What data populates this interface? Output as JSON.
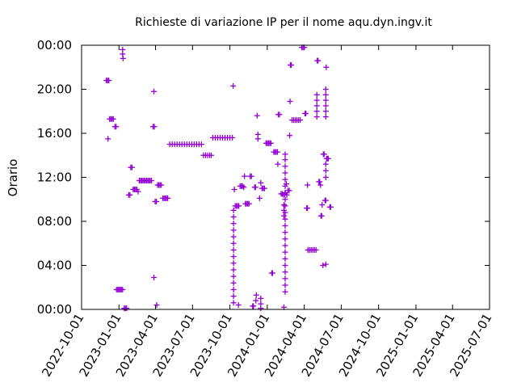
{
  "chart_data": {
    "type": "scatter",
    "title": "Richieste di variazione IP per il nome aqu.dyn.ingv.it",
    "ylabel": "Orario",
    "xlabel": "",
    "x_ticks": [
      "2022-10-01",
      "2023-01-01",
      "2023-04-01",
      "2023-07-01",
      "2023-10-01",
      "2024-01-01",
      "2024-04-01",
      "2024-07-01",
      "2024-10-01",
      "2025-01-01",
      "2025-04-01",
      "2025-07-01"
    ],
    "y_ticks": [
      "00:00",
      "04:00",
      "08:00",
      "12:00",
      "16:00",
      "20:00",
      "00:00"
    ],
    "xlim": [
      "2022-10-01",
      "2025-07-01"
    ],
    "ylim_hours": [
      0,
      24
    ],
    "grid": false,
    "marker": "plus",
    "series_color": "#9400d3",
    "points": [
      {
        "date": "2022-12-01",
        "hour": 20.8
      },
      {
        "date": "2022-12-04",
        "hour": 20.8
      },
      {
        "date": "2022-12-07",
        "hour": 20.8
      },
      {
        "date": "2022-12-05",
        "hour": 15.5
      },
      {
        "date": "2022-12-09",
        "hour": 17.3
      },
      {
        "date": "2022-12-12",
        "hour": 17.3
      },
      {
        "date": "2022-12-15",
        "hour": 17.3
      },
      {
        "date": "2022-12-18",
        "hour": 17.3
      },
      {
        "date": "2022-12-22",
        "hour": 16.6
      },
      {
        "date": "2022-12-25",
        "hour": 16.6
      },
      {
        "date": "2022-12-26",
        "hour": 1.8
      },
      {
        "date": "2022-12-29",
        "hour": 1.8
      },
      {
        "date": "2023-01-01",
        "hour": 1.8
      },
      {
        "date": "2023-01-04",
        "hour": 1.8
      },
      {
        "date": "2023-01-07",
        "hour": 1.8
      },
      {
        "date": "2023-01-10",
        "hour": 1.8
      },
      {
        "date": "2023-01-10",
        "hour": 23.6
      },
      {
        "date": "2023-01-10",
        "hour": 23.2
      },
      {
        "date": "2023-01-11",
        "hour": 22.8
      },
      {
        "date": "2023-01-14",
        "hour": 0.1
      },
      {
        "date": "2023-01-17",
        "hour": 0.1
      },
      {
        "date": "2023-01-20",
        "hour": 0.1
      },
      {
        "date": "2023-01-25",
        "hour": 10.4
      },
      {
        "date": "2023-01-28",
        "hour": 10.4
      },
      {
        "date": "2023-01-30",
        "hour": 12.9
      },
      {
        "date": "2023-02-02",
        "hour": 12.9
      },
      {
        "date": "2023-02-05",
        "hour": 10.9
      },
      {
        "date": "2023-02-08",
        "hour": 10.9
      },
      {
        "date": "2023-02-11",
        "hour": 10.9
      },
      {
        "date": "2023-02-14",
        "hour": 10.9
      },
      {
        "date": "2023-02-17",
        "hour": 10.7
      },
      {
        "date": "2023-02-20",
        "hour": 11.7
      },
      {
        "date": "2023-02-23",
        "hour": 11.7
      },
      {
        "date": "2023-02-26",
        "hour": 11.7
      },
      {
        "date": "2023-03-01",
        "hour": 11.7
      },
      {
        "date": "2023-03-04",
        "hour": 11.7
      },
      {
        "date": "2023-03-07",
        "hour": 11.7
      },
      {
        "date": "2023-03-10",
        "hour": 11.7
      },
      {
        "date": "2023-03-13",
        "hour": 11.7
      },
      {
        "date": "2023-03-16",
        "hour": 11.7
      },
      {
        "date": "2023-03-19",
        "hour": 11.7
      },
      {
        "date": "2023-03-22",
        "hour": 11.7
      },
      {
        "date": "2023-03-26",
        "hour": 16.6
      },
      {
        "date": "2023-03-29",
        "hour": 16.6
      },
      {
        "date": "2023-03-28",
        "hour": 19.8
      },
      {
        "date": "2023-03-28",
        "hour": 2.9
      },
      {
        "date": "2023-03-31",
        "hour": 9.8
      },
      {
        "date": "2023-04-03",
        "hour": 9.8
      },
      {
        "date": "2023-04-04",
        "hour": 0.4
      },
      {
        "date": "2023-04-06",
        "hour": 11.3
      },
      {
        "date": "2023-04-09",
        "hour": 11.3
      },
      {
        "date": "2023-04-12",
        "hour": 11.3
      },
      {
        "date": "2023-04-15",
        "hour": 11.3
      },
      {
        "date": "2023-04-19",
        "hour": 10.1
      },
      {
        "date": "2023-04-22",
        "hour": 10.1
      },
      {
        "date": "2023-04-25",
        "hour": 10.1
      },
      {
        "date": "2023-04-28",
        "hour": 10.1
      },
      {
        "date": "2023-05-01",
        "hour": 10.1
      },
      {
        "date": "2023-05-06",
        "hour": 15.0
      },
      {
        "date": "2023-05-12",
        "hour": 15.0
      },
      {
        "date": "2023-05-18",
        "hour": 15.0
      },
      {
        "date": "2023-05-24",
        "hour": 15.0
      },
      {
        "date": "2023-05-30",
        "hour": 15.0
      },
      {
        "date": "2023-06-05",
        "hour": 15.0
      },
      {
        "date": "2023-06-11",
        "hour": 15.0
      },
      {
        "date": "2023-06-17",
        "hour": 15.0
      },
      {
        "date": "2023-06-23",
        "hour": 15.0
      },
      {
        "date": "2023-06-29",
        "hour": 15.0
      },
      {
        "date": "2023-07-05",
        "hour": 15.0
      },
      {
        "date": "2023-07-11",
        "hour": 15.0
      },
      {
        "date": "2023-07-17",
        "hour": 15.0
      },
      {
        "date": "2023-07-23",
        "hour": 15.0
      },
      {
        "date": "2023-07-28",
        "hour": 14.0
      },
      {
        "date": "2023-08-02",
        "hour": 14.0
      },
      {
        "date": "2023-08-07",
        "hour": 14.0
      },
      {
        "date": "2023-08-12",
        "hour": 14.0
      },
      {
        "date": "2023-08-16",
        "hour": 14.0
      },
      {
        "date": "2023-08-20",
        "hour": 15.6
      },
      {
        "date": "2023-08-26",
        "hour": 15.6
      },
      {
        "date": "2023-09-01",
        "hour": 15.6
      },
      {
        "date": "2023-09-07",
        "hour": 15.6
      },
      {
        "date": "2023-09-13",
        "hour": 15.6
      },
      {
        "date": "2023-09-19",
        "hour": 15.6
      },
      {
        "date": "2023-09-25",
        "hour": 15.6
      },
      {
        "date": "2023-10-01",
        "hour": 15.6
      },
      {
        "date": "2023-10-07",
        "hour": 15.6
      },
      {
        "date": "2023-10-09",
        "hour": 20.3
      },
      {
        "date": "2023-10-10",
        "hour": 0.6
      },
      {
        "date": "2023-10-10",
        "hour": 1.2
      },
      {
        "date": "2023-10-10",
        "hour": 1.8
      },
      {
        "date": "2023-10-10",
        "hour": 2.4
      },
      {
        "date": "2023-10-10",
        "hour": 3.0
      },
      {
        "date": "2023-10-10",
        "hour": 3.6
      },
      {
        "date": "2023-10-10",
        "hour": 4.2
      },
      {
        "date": "2023-10-10",
        "hour": 4.8
      },
      {
        "date": "2023-10-10",
        "hour": 5.4
      },
      {
        "date": "2023-10-10",
        "hour": 6.0
      },
      {
        "date": "2023-10-10",
        "hour": 6.6
      },
      {
        "date": "2023-10-10",
        "hour": 7.2
      },
      {
        "date": "2023-10-10",
        "hour": 7.8
      },
      {
        "date": "2023-10-10",
        "hour": 8.4
      },
      {
        "date": "2023-10-10",
        "hour": 9.0
      },
      {
        "date": "2023-10-12",
        "hour": 10.9
      },
      {
        "date": "2023-10-14",
        "hour": 9.4
      },
      {
        "date": "2023-10-17",
        "hour": 9.4
      },
      {
        "date": "2023-10-20",
        "hour": 9.4
      },
      {
        "date": "2023-10-23",
        "hour": 9.4
      },
      {
        "date": "2023-10-22",
        "hour": 0.4
      },
      {
        "date": "2023-10-26",
        "hour": 11.2
      },
      {
        "date": "2023-10-29",
        "hour": 11.2
      },
      {
        "date": "2023-11-01",
        "hour": 11.2
      },
      {
        "date": "2023-11-04",
        "hour": 11.1
      },
      {
        "date": "2023-11-06",
        "hour": 12.1
      },
      {
        "date": "2023-11-08",
        "hour": 9.6
      },
      {
        "date": "2023-11-11",
        "hour": 9.6
      },
      {
        "date": "2023-11-14",
        "hour": 9.6
      },
      {
        "date": "2023-11-17",
        "hour": 9.6
      },
      {
        "date": "2023-11-20",
        "hour": 12.1
      },
      {
        "date": "2023-11-23",
        "hour": 12.1
      },
      {
        "date": "2023-11-26",
        "hour": 0.3
      },
      {
        "date": "2023-11-28",
        "hour": 0.3
      },
      {
        "date": "2023-12-01",
        "hour": 11.1
      },
      {
        "date": "2023-12-03",
        "hour": 11.1
      },
      {
        "date": "2023-12-04",
        "hour": 0.8
      },
      {
        "date": "2023-12-05",
        "hour": 1.3
      },
      {
        "date": "2023-12-07",
        "hour": 17.6
      },
      {
        "date": "2023-12-09",
        "hour": 15.9
      },
      {
        "date": "2023-12-09",
        "hour": 15.5
      },
      {
        "date": "2023-12-13",
        "hour": 10.1
      },
      {
        "date": "2023-12-16",
        "hour": 11.5
      },
      {
        "date": "2023-12-16",
        "hour": 0.1
      },
      {
        "date": "2023-12-16",
        "hour": 0.5
      },
      {
        "date": "2023-12-16",
        "hour": 1.0
      },
      {
        "date": "2023-12-19",
        "hour": 11.0
      },
      {
        "date": "2023-12-22",
        "hour": 11.0
      },
      {
        "date": "2023-12-25",
        "hour": 11.0
      },
      {
        "date": "2023-12-29",
        "hour": 15.1
      },
      {
        "date": "2024-01-01",
        "hour": 15.1
      },
      {
        "date": "2024-01-04",
        "hour": 15.1
      },
      {
        "date": "2024-01-07",
        "hour": 15.1
      },
      {
        "date": "2024-01-10",
        "hour": 15.1
      },
      {
        "date": "2024-01-12",
        "hour": 3.3
      },
      {
        "date": "2024-01-14",
        "hour": 3.3
      },
      {
        "date": "2024-01-17",
        "hour": 14.3
      },
      {
        "date": "2024-01-20",
        "hour": 14.3
      },
      {
        "date": "2024-01-23",
        "hour": 14.3
      },
      {
        "date": "2024-01-26",
        "hour": 14.3
      },
      {
        "date": "2024-01-27",
        "hour": 13.2
      },
      {
        "date": "2024-01-28",
        "hour": 17.7
      },
      {
        "date": "2024-01-31",
        "hour": 17.7
      },
      {
        "date": "2024-02-04",
        "hour": 10.5
      },
      {
        "date": "2024-02-07",
        "hour": 10.5
      },
      {
        "date": "2024-02-10",
        "hour": 10.4
      },
      {
        "date": "2024-02-13",
        "hour": 10.5
      },
      {
        "date": "2024-02-11",
        "hour": 0.2
      },
      {
        "date": "2024-02-14",
        "hour": 1.6
      },
      {
        "date": "2024-02-14",
        "hour": 2.2
      },
      {
        "date": "2024-02-14",
        "hour": 2.8
      },
      {
        "date": "2024-02-14",
        "hour": 3.4
      },
      {
        "date": "2024-02-14",
        "hour": 4.0
      },
      {
        "date": "2024-02-14",
        "hour": 4.6
      },
      {
        "date": "2024-02-14",
        "hour": 5.2
      },
      {
        "date": "2024-02-14",
        "hour": 5.8
      },
      {
        "date": "2024-02-14",
        "hour": 6.4
      },
      {
        "date": "2024-02-14",
        "hour": 7.0
      },
      {
        "date": "2024-02-14",
        "hour": 7.6
      },
      {
        "date": "2024-02-14",
        "hour": 8.2
      },
      {
        "date": "2024-02-14",
        "hour": 8.8
      },
      {
        "date": "2024-02-14",
        "hour": 9.4
      },
      {
        "date": "2024-02-14",
        "hour": 10.0
      },
      {
        "date": "2024-02-14",
        "hour": 10.6
      },
      {
        "date": "2024-02-14",
        "hour": 11.2
      },
      {
        "date": "2024-02-14",
        "hour": 11.8
      },
      {
        "date": "2024-02-14",
        "hour": 12.4
      },
      {
        "date": "2024-02-14",
        "hour": 13.0
      },
      {
        "date": "2024-02-14",
        "hour": 13.6
      },
      {
        "date": "2024-02-14",
        "hour": 14.1
      },
      {
        "date": "2024-02-11",
        "hour": 8.5
      },
      {
        "date": "2024-02-11",
        "hour": 9.0
      },
      {
        "date": "2024-02-11",
        "hour": 9.5
      },
      {
        "date": "2024-02-17",
        "hour": 11.4
      },
      {
        "date": "2024-02-18",
        "hour": 10.4
      },
      {
        "date": "2024-02-21",
        "hour": 10.8
      },
      {
        "date": "2024-02-24",
        "hour": 10.8
      },
      {
        "date": "2024-02-25",
        "hour": 15.8
      },
      {
        "date": "2024-02-26",
        "hour": 18.9
      },
      {
        "date": "2024-02-27",
        "hour": 22.2
      },
      {
        "date": "2024-02-29",
        "hour": 22.2
      },
      {
        "date": "2024-03-02",
        "hour": 17.2
      },
      {
        "date": "2024-03-06",
        "hour": 17.2
      },
      {
        "date": "2024-03-10",
        "hour": 17.2
      },
      {
        "date": "2024-03-14",
        "hour": 17.2
      },
      {
        "date": "2024-03-18",
        "hour": 17.2
      },
      {
        "date": "2024-03-22",
        "hour": 17.2
      },
      {
        "date": "2024-03-26",
        "hour": 23.8
      },
      {
        "date": "2024-03-29",
        "hour": 23.8
      },
      {
        "date": "2024-04-01",
        "hour": 23.8
      },
      {
        "date": "2024-04-03",
        "hour": 17.8
      },
      {
        "date": "2024-04-05",
        "hour": 17.8
      },
      {
        "date": "2024-04-07",
        "hour": 9.2
      },
      {
        "date": "2024-04-09",
        "hour": 9.2
      },
      {
        "date": "2024-04-09",
        "hour": 11.3
      },
      {
        "date": "2024-04-10",
        "hour": 5.4
      },
      {
        "date": "2024-04-14",
        "hour": 5.4
      },
      {
        "date": "2024-04-18",
        "hour": 5.4
      },
      {
        "date": "2024-04-22",
        "hour": 5.4
      },
      {
        "date": "2024-04-26",
        "hour": 5.4
      },
      {
        "date": "2024-04-30",
        "hour": 5.4
      },
      {
        "date": "2024-05-02",
        "hour": 17.5
      },
      {
        "date": "2024-05-02",
        "hour": 18.0
      },
      {
        "date": "2024-05-02",
        "hour": 18.5
      },
      {
        "date": "2024-05-02",
        "hour": 19.0
      },
      {
        "date": "2024-05-02",
        "hour": 19.5
      },
      {
        "date": "2024-05-03",
        "hour": 22.6
      },
      {
        "date": "2024-05-05",
        "hour": 22.6
      },
      {
        "date": "2024-05-07",
        "hour": 11.6
      },
      {
        "date": "2024-05-09",
        "hour": 11.6
      },
      {
        "date": "2024-05-11",
        "hour": 11.3
      },
      {
        "date": "2024-05-12",
        "hour": 8.5
      },
      {
        "date": "2024-05-14",
        "hour": 8.5
      },
      {
        "date": "2024-05-15",
        "hour": 9.5
      },
      {
        "date": "2024-05-17",
        "hour": 4.0
      },
      {
        "date": "2024-05-18",
        "hour": 14.1
      },
      {
        "date": "2024-05-20",
        "hour": 14.1
      },
      {
        "date": "2024-05-22",
        "hour": 9.9
      },
      {
        "date": "2024-05-24",
        "hour": 9.9
      },
      {
        "date": "2024-05-24",
        "hour": 4.1
      },
      {
        "date": "2024-05-24",
        "hour": 17.5
      },
      {
        "date": "2024-05-24",
        "hour": 18.0
      },
      {
        "date": "2024-05-24",
        "hour": 18.5
      },
      {
        "date": "2024-05-24",
        "hour": 19.0
      },
      {
        "date": "2024-05-24",
        "hour": 19.5
      },
      {
        "date": "2024-05-24",
        "hour": 20.0
      },
      {
        "date": "2024-05-24",
        "hour": 12.0
      },
      {
        "date": "2024-05-24",
        "hour": 12.6
      },
      {
        "date": "2024-05-24",
        "hour": 13.2
      },
      {
        "date": "2024-05-25",
        "hour": 22.0
      },
      {
        "date": "2024-05-26",
        "hour": 13.7
      },
      {
        "date": "2024-05-28",
        "hour": 13.7
      },
      {
        "date": "2024-05-30",
        "hour": 13.7
      },
      {
        "date": "2024-06-03",
        "hour": 9.3
      },
      {
        "date": "2024-06-05",
        "hour": 9.3
      }
    ]
  }
}
